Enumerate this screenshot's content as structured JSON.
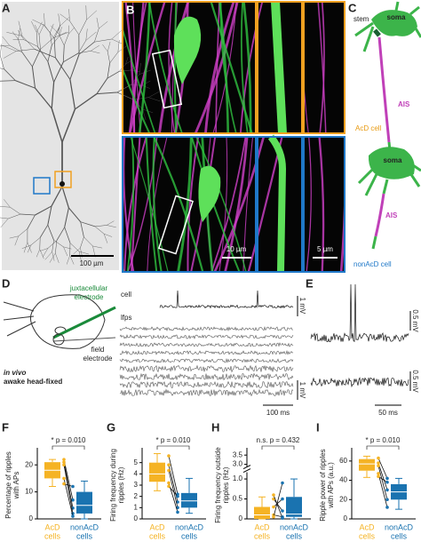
{
  "panels": {
    "A": {
      "label": "A",
      "scale_bar": "100 µm"
    },
    "B": {
      "label": "B",
      "scale_bar_main": "10 µm",
      "scale_bar_zoom": "5 µm"
    },
    "C": {
      "label": "C",
      "stem": "stem",
      "soma_top": "soma",
      "ais_top": "AIS",
      "acd_cell": "AcD cell",
      "soma_bottom": "soma",
      "ais_bottom": "AIS",
      "nonacd_cell": "nonAcD cell"
    },
    "D": {
      "label": "D",
      "juxta": "juxtacellular",
      "electrode1": "electrode",
      "cell": "cell",
      "lfps": "lfps",
      "field": "field",
      "electrode2": "electrode",
      "in_vivo": "in vivo",
      "awake": "awake head-fixed",
      "scale_y": "1 mV",
      "scale_x": "100 ms"
    },
    "E": {
      "label": "E",
      "scale_y1": "0.5 mV",
      "scale_y2": "0.5 mV",
      "scale_x": "50 ms"
    }
  },
  "chart_data": [
    {
      "type": "box",
      "label": "F",
      "ylabel": [
        "Percentage of ripples",
        "with APs"
      ],
      "categories": [
        [
          "AcD",
          "cells"
        ],
        [
          "nonAcD",
          "cells"
        ]
      ],
      "colors": [
        "#f5b324",
        "#1a73b0"
      ],
      "boxes": [
        {
          "min": 12,
          "q1": 15,
          "median": 18,
          "q3": 21,
          "max": 22
        },
        {
          "min": 0,
          "q1": 2,
          "median": 5,
          "q3": 10,
          "max": 14
        }
      ],
      "pairs": [
        [
          22,
          7
        ],
        [
          21,
          4
        ],
        [
          20,
          2
        ],
        [
          15,
          1
        ],
        [
          13,
          12
        ]
      ],
      "significance": "* p = 0.010",
      "ylim": [
        0,
        25
      ],
      "yticks": [
        0,
        10,
        20
      ]
    },
    {
      "type": "box",
      "label": "G",
      "ylabel": [
        "Firing frequency during",
        "ripples (Hz)"
      ],
      "categories": [
        [
          "AcD",
          "cells"
        ],
        [
          "nonAcD",
          "cells"
        ]
      ],
      "colors": [
        "#f5b324",
        "#1a73b0"
      ],
      "boxes": [
        {
          "min": 2.5,
          "q1": 3.3,
          "median": 4,
          "q3": 5,
          "max": 5.8
        },
        {
          "min": 0.5,
          "q1": 1,
          "median": 1.6,
          "q3": 2.3,
          "max": 3.6
        }
      ],
      "pairs": [
        [
          5.6,
          2.2
        ],
        [
          4.8,
          1.5
        ],
        [
          4.3,
          1
        ],
        [
          3.2,
          0.6
        ],
        [
          2.9,
          2
        ]
      ],
      "significance": "* p = 0.010",
      "ylim": [
        0,
        6
      ],
      "yticks": [
        0,
        1,
        2,
        3,
        4,
        5
      ]
    },
    {
      "type": "box",
      "label": "H",
      "ylabel": [
        "Firing frequency outside",
        "ripples (Hz)"
      ],
      "categories": [
        [
          "AcD",
          "cells"
        ],
        [
          "nonAcD",
          "cells"
        ]
      ],
      "colors": [
        "#f5b324",
        "#1a73b0"
      ],
      "boxes": [
        {
          "min": 0,
          "q1": 0,
          "median": 0.1,
          "q3": 0.3,
          "max": 0.55
        },
        {
          "min": 0,
          "q1": 0.05,
          "median": 0.12,
          "q3": 0.55,
          "max": 1
        }
      ],
      "pairs": [
        [
          0.1,
          0.05
        ],
        [
          0.3,
          0.5
        ],
        [
          0.5,
          0.2
        ],
        [
          0.05,
          0.9
        ],
        [
          0.6,
          0.02
        ]
      ],
      "significance": "n.s. p = 0.432",
      "ylim": [
        0,
        3.7
      ],
      "axis_break": [
        1.15,
        2.9
      ],
      "yticks": [
        0,
        0.5,
        {
          "value": 1,
          "label": "1.0"
        },
        {
          "value": 3,
          "label": "3.0"
        },
        3.5
      ]
    },
    {
      "type": "box",
      "label": "I",
      "ylabel": [
        "Ripple power of ripples",
        "with APs (a.u.)"
      ],
      "categories": [
        [
          "AcD",
          "cells"
        ],
        [
          "nonAcD",
          "cells"
        ]
      ],
      "colors": [
        "#f5b324",
        "#1a73b0"
      ],
      "boxes": [
        {
          "min": 43,
          "q1": 50,
          "median": 57,
          "q3": 62,
          "max": 65
        },
        {
          "min": 10,
          "q1": 20,
          "median": 28,
          "q3": 36,
          "max": 42
        }
      ],
      "pairs": [
        [
          63,
          42
        ],
        [
          58,
          30
        ],
        [
          55,
          20
        ],
        [
          47,
          12
        ],
        [
          44,
          38
        ]
      ],
      "significance": "* p = 0.010",
      "ylim": [
        0,
        70
      ],
      "yticks": [
        0,
        20,
        40,
        60
      ]
    }
  ]
}
